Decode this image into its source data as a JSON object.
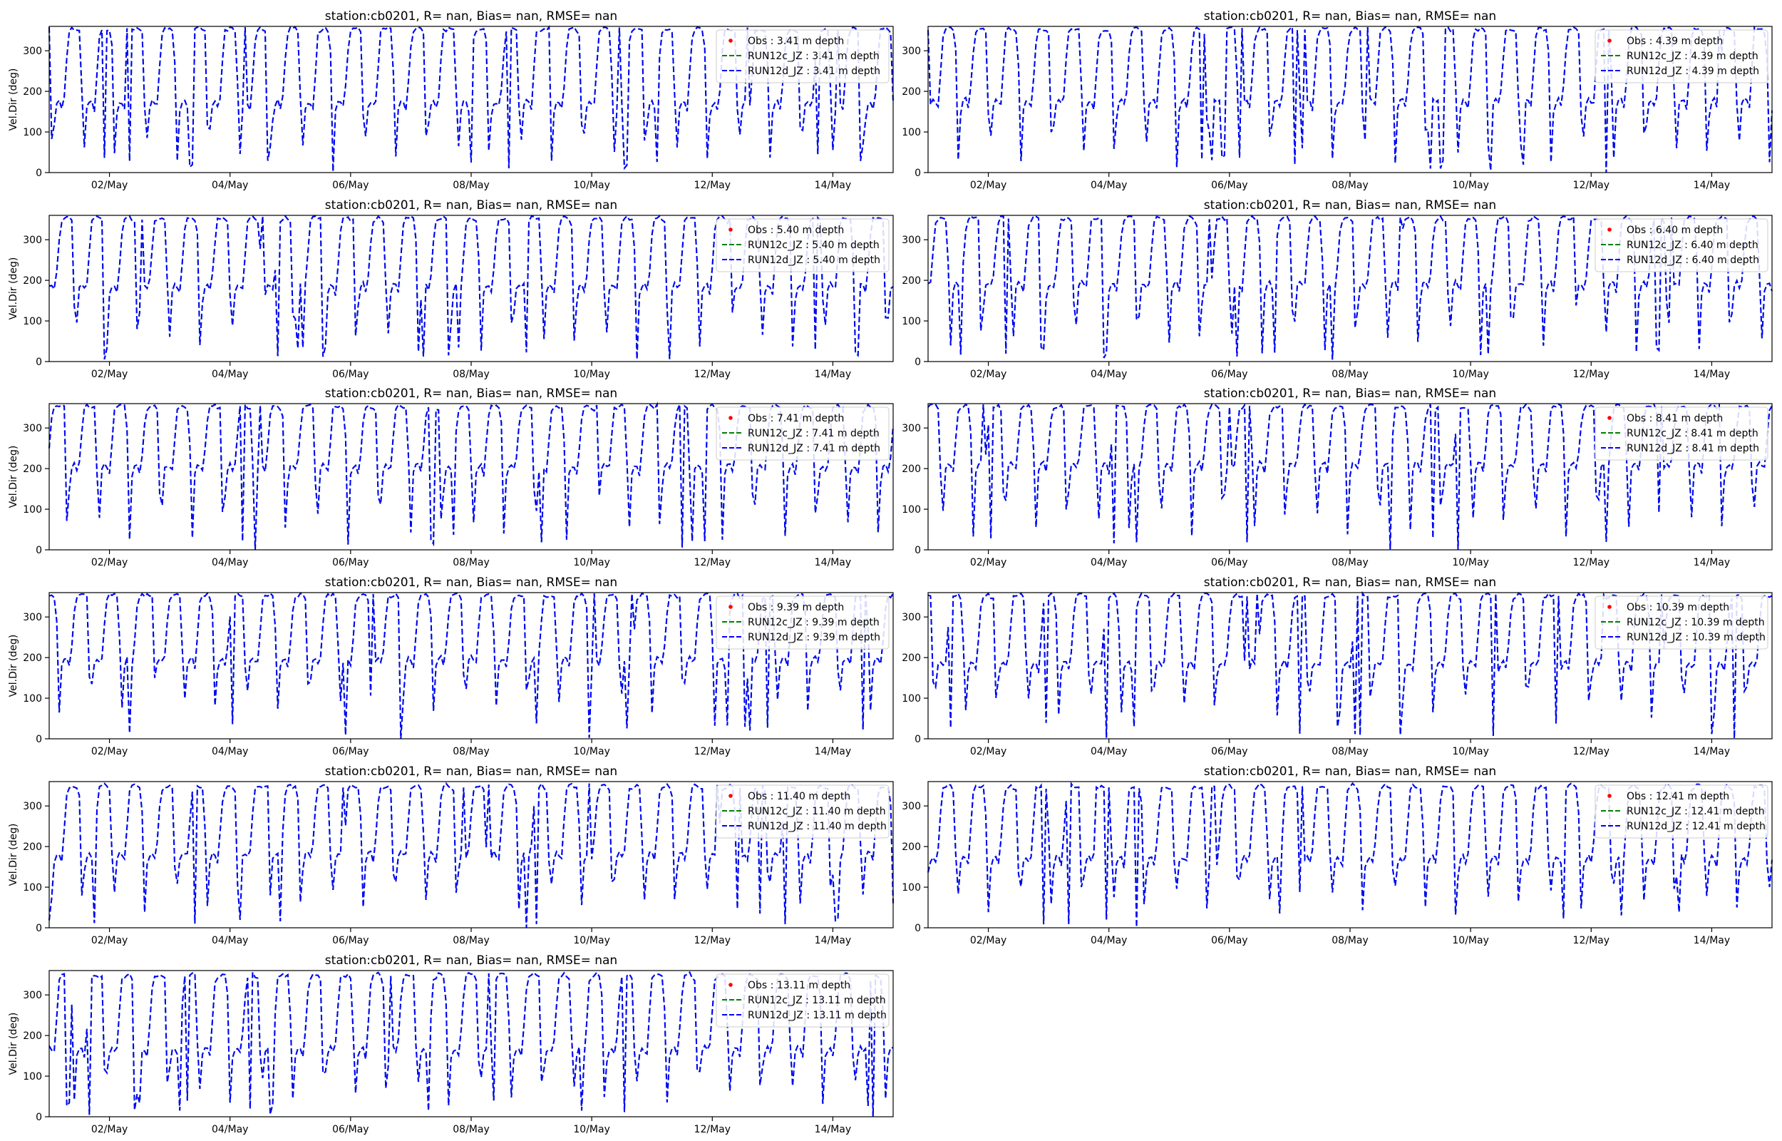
{
  "figure": {
    "background": "#ffffff",
    "colors": {
      "obs": "#ff0000",
      "run12c": "#008000",
      "run12d": "#0000ff",
      "axis": "#000000",
      "legend_border": "#cccccc"
    }
  },
  "chart_data": [
    {
      "type": "line",
      "title": "station:cb0201, R=   nan, Bias=    nan, RMSE=    nan",
      "ylabel": "Vel.Dir (deg)",
      "xlabel": "",
      "x_ticks": [
        "02/May",
        "04/May",
        "06/May",
        "08/May",
        "10/May",
        "12/May",
        "14/May"
      ],
      "y_ticks": [
        "0",
        "100",
        "200",
        "300"
      ],
      "ylim": [
        0,
        360
      ],
      "xlim_days": [
        1,
        15
      ],
      "grid": false,
      "legend_position": "upper right",
      "legend": [
        "Obs : 3.41 m depth",
        "RUN12c_JZ : 3.41 m depth",
        "RUN12d_JZ : 3.41 m depth"
      ],
      "depth": 3.41,
      "profile": {
        "min_low": 0,
        "max_high": 355,
        "plateau": 150,
        "trough": 20
      },
      "series": [
        {
          "name": "Obs : 3.41 m depth",
          "values": []
        },
        {
          "name": "RUN12c_JZ : 3.41 m depth",
          "values": "overlaps RUN12d_JZ"
        },
        {
          "name": "RUN12d_JZ : 3.41 m depth",
          "values": "semi-diurnal sawtooth between ~0 and ~355 deg"
        }
      ]
    },
    {
      "type": "line",
      "title": "station:cb0201, R=   nan, Bias=    nan, RMSE=    nan",
      "ylabel": "",
      "xlabel": "",
      "x_ticks": [
        "02/May",
        "04/May",
        "06/May",
        "08/May",
        "10/May",
        "12/May",
        "14/May"
      ],
      "y_ticks": [
        "0",
        "100",
        "200",
        "300"
      ],
      "ylim": [
        0,
        360
      ],
      "xlim_days": [
        1,
        15
      ],
      "grid": false,
      "legend_position": "upper right",
      "legend": [
        "Obs : 4.39 m depth",
        "RUN12c_JZ : 4.39 m depth",
        "RUN12d_JZ : 4.39 m depth"
      ],
      "depth": 4.39,
      "profile": {
        "min_low": 0,
        "max_high": 355,
        "plateau": 155,
        "trough": 15
      },
      "series": [
        {
          "name": "Obs : 4.39 m depth",
          "values": []
        },
        {
          "name": "RUN12c_JZ : 4.39 m depth",
          "values": "overlaps RUN12d_JZ"
        },
        {
          "name": "RUN12d_JZ : 4.39 m depth",
          "values": "semi-diurnal sawtooth between ~0 and ~355 deg"
        }
      ]
    },
    {
      "type": "line",
      "title": "station:cb0201, R=   nan, Bias=    nan, RMSE=    nan",
      "ylabel": "Vel.Dir (deg)",
      "xlabel": "",
      "x_ticks": [
        "02/May",
        "04/May",
        "06/May",
        "08/May",
        "10/May",
        "12/May",
        "14/May"
      ],
      "y_ticks": [
        "0",
        "100",
        "200",
        "300"
      ],
      "ylim": [
        0,
        360
      ],
      "xlim_days": [
        1,
        15
      ],
      "grid": false,
      "legend_position": "upper right",
      "legend": [
        "Obs : 5.40 m depth",
        "RUN12c_JZ : 5.40 m depth",
        "RUN12d_JZ : 5.40 m depth"
      ],
      "depth": 5.4,
      "profile": {
        "min_low": 0,
        "max_high": 355,
        "plateau": 165,
        "trough": 10
      },
      "series": [
        {
          "name": "Obs : 5.40 m depth",
          "values": []
        },
        {
          "name": "RUN12c_JZ : 5.40 m depth",
          "values": "overlaps RUN12d_JZ"
        },
        {
          "name": "RUN12d_JZ : 5.40 m depth",
          "values": "semi-diurnal sawtooth between ~0 and ~355 deg"
        }
      ]
    },
    {
      "type": "line",
      "title": "station:cb0201, R=   nan, Bias=    nan, RMSE=    nan",
      "ylabel": "",
      "xlabel": "",
      "x_ticks": [
        "02/May",
        "04/May",
        "06/May",
        "08/May",
        "10/May",
        "12/May",
        "14/May"
      ],
      "y_ticks": [
        "0",
        "100",
        "200",
        "300"
      ],
      "ylim": [
        0,
        360
      ],
      "xlim_days": [
        1,
        15
      ],
      "grid": false,
      "legend_position": "upper right",
      "legend": [
        "Obs : 6.40 m depth",
        "RUN12c_JZ : 6.40 m depth",
        "RUN12d_JZ : 6.40 m depth"
      ],
      "depth": 6.4,
      "profile": {
        "min_low": 0,
        "max_high": 355,
        "plateau": 170,
        "trough": 10
      },
      "series": [
        {
          "name": "Obs : 6.40 m depth",
          "values": []
        },
        {
          "name": "RUN12c_JZ : 6.40 m depth",
          "values": "overlaps RUN12d_JZ"
        },
        {
          "name": "RUN12d_JZ : 6.40 m depth",
          "values": "semi-diurnal sawtooth between ~0 and ~355 deg"
        }
      ]
    },
    {
      "type": "line",
      "title": "station:cb0201, R=   nan, Bias=    nan, RMSE=    nan",
      "ylabel": "Vel.Dir (deg)",
      "xlabel": "",
      "x_ticks": [
        "02/May",
        "04/May",
        "06/May",
        "08/May",
        "10/May",
        "12/May",
        "14/May"
      ],
      "y_ticks": [
        "0",
        "100",
        "200",
        "300"
      ],
      "ylim": [
        0,
        360
      ],
      "xlim_days": [
        1,
        15
      ],
      "grid": false,
      "legend_position": "upper right",
      "legend": [
        "Obs : 7.41 m depth",
        "RUN12c_JZ : 7.41 m depth",
        "RUN12d_JZ : 7.41 m depth"
      ],
      "depth": 7.41,
      "profile": {
        "min_low": 0,
        "max_high": 355,
        "plateau": 185,
        "trough": 15
      },
      "series": [
        {
          "name": "Obs : 7.41 m depth",
          "values": []
        },
        {
          "name": "RUN12c_JZ : 7.41 m depth",
          "values": "overlaps RUN12d_JZ"
        },
        {
          "name": "RUN12d_JZ : 7.41 m depth",
          "values": "semi-diurnal oscillation between ~0 and ~355 deg"
        }
      ]
    },
    {
      "type": "line",
      "title": "station:cb0201, R=   nan, Bias=    nan, RMSE=    nan",
      "ylabel": "",
      "xlabel": "",
      "x_ticks": [
        "02/May",
        "04/May",
        "06/May",
        "08/May",
        "10/May",
        "12/May",
        "14/May"
      ],
      "y_ticks": [
        "0",
        "100",
        "200",
        "300"
      ],
      "ylim": [
        0,
        360
      ],
      "xlim_days": [
        1,
        15
      ],
      "grid": false,
      "legend_position": "upper right",
      "legend": [
        "Obs : 8.41 m depth",
        "RUN12c_JZ : 8.41 m depth",
        "RUN12d_JZ : 8.41 m depth"
      ],
      "depth": 8.41,
      "profile": {
        "min_low": 0,
        "max_high": 355,
        "plateau": 190,
        "trough": 30
      },
      "series": [
        {
          "name": "Obs : 8.41 m depth",
          "values": []
        },
        {
          "name": "RUN12c_JZ : 8.41 m depth",
          "values": "overlaps RUN12d_JZ"
        },
        {
          "name": "RUN12d_JZ : 8.41 m depth",
          "values": "semi-diurnal oscillation between ~0 and ~355 deg"
        }
      ]
    },
    {
      "type": "line",
      "title": "station:cb0201, R=   nan, Bias=    nan, RMSE=    nan",
      "ylabel": "Vel.Dir (deg)",
      "xlabel": "",
      "x_ticks": [
        "02/May",
        "04/May",
        "06/May",
        "08/May",
        "10/May",
        "12/May",
        "14/May"
      ],
      "y_ticks": [
        "0",
        "100",
        "200",
        "300"
      ],
      "ylim": [
        0,
        360
      ],
      "xlim_days": [
        1,
        15
      ],
      "grid": false,
      "legend_position": "upper right",
      "legend": [
        "Obs : 9.39 m depth",
        "RUN12c_JZ : 9.39 m depth",
        "RUN12d_JZ : 9.39 m depth"
      ],
      "depth": 9.39,
      "profile": {
        "min_low": 0,
        "max_high": 355,
        "plateau": 175,
        "trough": 60
      },
      "series": [
        {
          "name": "Obs : 9.39 m depth",
          "values": []
        },
        {
          "name": "RUN12c_JZ : 9.39 m depth",
          "values": "overlaps RUN12d_JZ"
        },
        {
          "name": "RUN12d_JZ : 9.39 m depth",
          "values": "semi-diurnal oscillation between ~170 and ~350 deg with dips"
        }
      ]
    },
    {
      "type": "line",
      "title": "station:cb0201, R=   nan, Bias=    nan, RMSE=    nan",
      "ylabel": "",
      "xlabel": "",
      "x_ticks": [
        "02/May",
        "04/May",
        "06/May",
        "08/May",
        "10/May",
        "12/May",
        "14/May"
      ],
      "y_ticks": [
        "0",
        "100",
        "200",
        "300"
      ],
      "ylim": [
        0,
        360
      ],
      "xlim_days": [
        1,
        15
      ],
      "grid": false,
      "legend_position": "upper right",
      "legend": [
        "Obs : 10.39 m depth",
        "RUN12c_JZ : 10.39 m depth",
        "RUN12d_JZ : 10.39 m depth"
      ],
      "depth": 10.39,
      "profile": {
        "min_low": 0,
        "max_high": 355,
        "plateau": 165,
        "trough": 50
      },
      "series": [
        {
          "name": "Obs : 10.39 m depth",
          "values": []
        },
        {
          "name": "RUN12c_JZ : 10.39 m depth",
          "values": "overlaps RUN12d_JZ"
        },
        {
          "name": "RUN12d_JZ : 10.39 m depth",
          "values": "semi-diurnal oscillation between ~160 and ~350 deg with dips"
        }
      ]
    },
    {
      "type": "line",
      "title": "station:cb0201, R=   nan, Bias=    nan, RMSE=    nan",
      "ylabel": "Vel.Dir (deg)",
      "xlabel": "",
      "x_ticks": [
        "02/May",
        "04/May",
        "06/May",
        "08/May",
        "10/May",
        "12/May",
        "14/May"
      ],
      "y_ticks": [
        "0",
        "100",
        "200",
        "300"
      ],
      "ylim": [
        0,
        360
      ],
      "xlim_days": [
        1,
        15
      ],
      "grid": false,
      "legend_position": "upper right",
      "legend": [
        "Obs : 11.40 m depth",
        "RUN12c_JZ : 11.40 m depth",
        "RUN12d_JZ : 11.40 m depth"
      ],
      "depth": 11.4,
      "profile": {
        "min_low": 0,
        "max_high": 350,
        "plateau": 160,
        "trough": 40
      },
      "series": [
        {
          "name": "Obs : 11.40 m depth",
          "values": []
        },
        {
          "name": "RUN12c_JZ : 11.40 m depth",
          "values": "overlaps RUN12d_JZ"
        },
        {
          "name": "RUN12d_JZ : 11.40 m depth",
          "values": "semi-diurnal oscillation between ~150 and ~345 deg with dips"
        }
      ]
    },
    {
      "type": "line",
      "title": "station:cb0201, R=   nan, Bias=    nan, RMSE=    nan",
      "ylabel": "",
      "xlabel": "",
      "x_ticks": [
        "02/May",
        "04/May",
        "06/May",
        "08/May",
        "10/May",
        "12/May",
        "14/May"
      ],
      "y_ticks": [
        "0",
        "100",
        "200",
        "300"
      ],
      "ylim": [
        0,
        360
      ],
      "xlim_days": [
        1,
        15
      ],
      "grid": false,
      "legend_position": "upper right",
      "legend": [
        "Obs : 12.41 m depth",
        "RUN12c_JZ : 12.41 m depth",
        "RUN12d_JZ : 12.41 m depth"
      ],
      "depth": 12.41,
      "profile": {
        "min_low": 0,
        "max_high": 350,
        "plateau": 150,
        "trough": 40
      },
      "series": [
        {
          "name": "Obs : 12.41 m depth",
          "values": []
        },
        {
          "name": "RUN12c_JZ : 12.41 m depth",
          "values": "overlaps RUN12d_JZ"
        },
        {
          "name": "RUN12d_JZ : 12.41 m depth",
          "values": "semi-diurnal oscillation between ~140 and ~345 deg with dips"
        }
      ]
    },
    {
      "type": "line",
      "title": "station:cb0201, R=   nan, Bias=    nan, RMSE=    nan",
      "ylabel": "Vel.Dir (deg)",
      "xlabel": "",
      "x_ticks": [
        "02/May",
        "04/May",
        "06/May",
        "08/May",
        "10/May",
        "12/May",
        "14/May"
      ],
      "y_ticks": [
        "0",
        "100",
        "200",
        "300"
      ],
      "ylim": [
        0,
        360
      ],
      "xlim_days": [
        1,
        15
      ],
      "grid": false,
      "legend_position": "upper right",
      "legend": [
        "Obs : 13.11 m depth",
        "RUN12c_JZ : 13.11 m depth",
        "RUN12d_JZ : 13.11 m depth"
      ],
      "depth": 13.11,
      "profile": {
        "min_low": 0,
        "max_high": 350,
        "plateau": 145,
        "trough": 30
      },
      "series": [
        {
          "name": "Obs : 13.11 m depth",
          "values": []
        },
        {
          "name": "RUN12c_JZ : 13.11 m depth",
          "values": "overlaps RUN12d_JZ"
        },
        {
          "name": "RUN12d_JZ : 13.11 m depth",
          "values": "semi-diurnal oscillation between ~140 and ~345 deg with dips"
        }
      ]
    }
  ]
}
